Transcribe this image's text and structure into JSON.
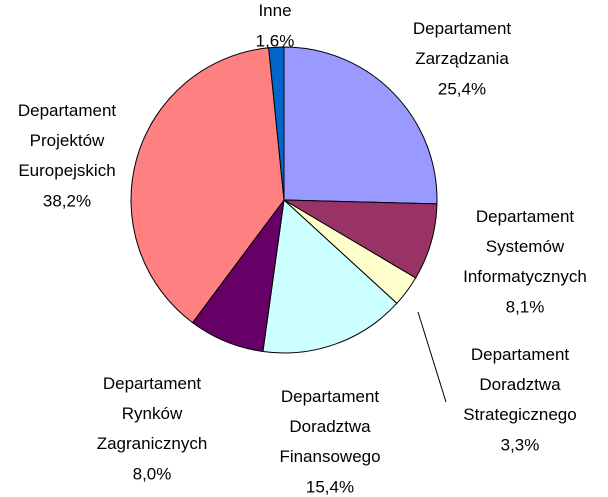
{
  "chart_data": {
    "type": "pie",
    "categories": [
      "Departament\nZarządzania",
      "Departament\nSystemów\nInformatycznych",
      "Departament\nDoradztwa\nStrategicznego",
      "Departament\nDoradztwa\nFinansowego",
      "Departament\nRynków\nZagranicznych",
      "Departament\nProjektów\nEuropejskich",
      "Inne"
    ],
    "values": [
      25.4,
      8.1,
      3.3,
      15.4,
      8.0,
      38.2,
      1.6
    ],
    "value_labels": [
      "25,4%",
      "8,1%",
      "3,3%",
      "15,4%",
      "8,0%",
      "38,2%",
      "1,6%"
    ],
    "colors": [
      "#9999ff",
      "#993366",
      "#ffffcc",
      "#ccffff",
      "#660066",
      "#ff8080",
      "#0066cc"
    ]
  }
}
